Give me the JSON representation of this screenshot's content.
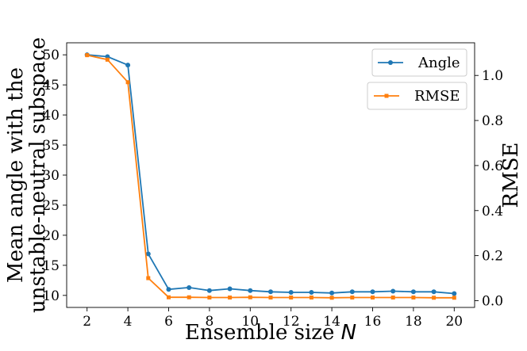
{
  "chart_data": {
    "type": "line",
    "x": [
      2,
      3,
      4,
      5,
      6,
      7,
      8,
      9,
      10,
      11,
      12,
      13,
      14,
      15,
      16,
      17,
      18,
      19,
      20
    ],
    "series": [
      {
        "name": "Angle",
        "axis": "left",
        "color": "#1f77b4",
        "marker": "circle",
        "values": [
          50.0,
          49.7,
          48.3,
          16.9,
          11.0,
          11.3,
          10.8,
          11.1,
          10.8,
          10.6,
          10.5,
          10.5,
          10.4,
          10.6,
          10.6,
          10.7,
          10.6,
          10.6,
          10.3
        ]
      },
      {
        "name": "RMSE",
        "axis": "right",
        "color": "#ff7f0e",
        "marker": "square",
        "values": [
          1.09,
          1.07,
          0.97,
          0.1,
          0.015,
          0.015,
          0.014,
          0.014,
          0.015,
          0.014,
          0.014,
          0.014,
          0.013,
          0.014,
          0.014,
          0.014,
          0.014,
          0.013,
          0.013
        ]
      }
    ],
    "xlabel_text": "Ensemble size ",
    "xlabel_var": "N",
    "ylabel_left_line1": "Mean angle with the",
    "ylabel_left_line2": "unstable-neutral subspace",
    "ylabel_right": "RMSE",
    "xticks": [
      "2",
      "4",
      "6",
      "8",
      "10",
      "12",
      "14",
      "16",
      "18",
      "20"
    ],
    "yticks_left": [
      "10",
      "15",
      "20",
      "25",
      "30",
      "35",
      "40",
      "45",
      "50"
    ],
    "yticks_right": [
      "0.0",
      "0.2",
      "0.4",
      "0.6",
      "0.8",
      "1.0"
    ],
    "xlim": [
      1.0,
      21.0
    ],
    "ylim_left": [
      8.0,
      52.0
    ],
    "ylim_right": [
      -0.03,
      1.145
    ],
    "legend_placement": "top-right",
    "grid": false
  }
}
